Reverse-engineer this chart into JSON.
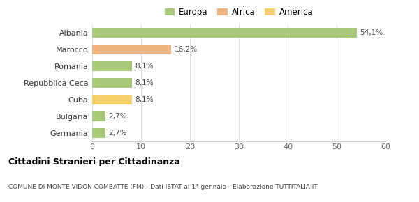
{
  "categories": [
    "Albania",
    "Marocco",
    "Romania",
    "Repubblica Ceca",
    "Cuba",
    "Bulgaria",
    "Germania"
  ],
  "values": [
    54.1,
    16.2,
    8.1,
    8.1,
    8.1,
    2.7,
    2.7
  ],
  "labels": [
    "54,1%",
    "16,2%",
    "8,1%",
    "8,1%",
    "8,1%",
    "2,7%",
    "2,7%"
  ],
  "colors": [
    "#a8c87a",
    "#f0b480",
    "#a8c87a",
    "#a8c87a",
    "#f5d06a",
    "#a8c87a",
    "#a8c87a"
  ],
  "legend": [
    {
      "label": "Europa",
      "color": "#a8c87a"
    },
    {
      "label": "Africa",
      "color": "#f0b480"
    },
    {
      "label": "America",
      "color": "#f5d06a"
    }
  ],
  "xlim": [
    0,
    60
  ],
  "xticks": [
    0,
    10,
    20,
    30,
    40,
    50,
    60
  ],
  "title": "Cittadini Stranieri per Cittadinanza",
  "subtitle": "COMUNE DI MONTE VIDON COMBATTE (FM) - Dati ISTAT al 1° gennaio - Elaborazione TUTTITALIA.IT",
  "bg_color": "#ffffff",
  "bar_height": 0.6
}
